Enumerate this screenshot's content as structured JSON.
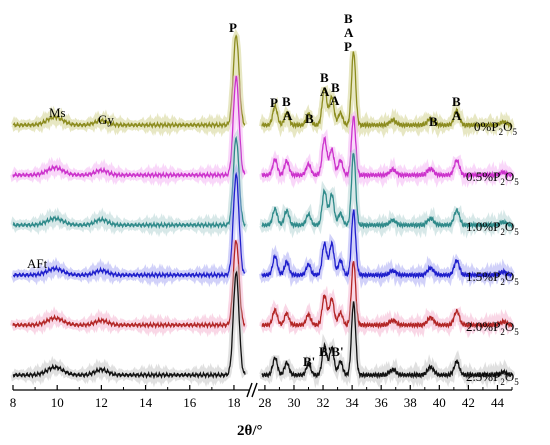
{
  "chart_data": {
    "type": "line",
    "xlabel": "2θ/°",
    "axis_break": {
      "left_end": 18.5,
      "right_start": 27.8
    },
    "x_ticks_left": [
      "8",
      "10",
      "12",
      "14",
      "16",
      "18"
    ],
    "x_ticks_right": [
      "28",
      "30",
      "32",
      "34",
      "36",
      "38",
      "40",
      "42",
      "44"
    ],
    "series": [
      {
        "name": "0%P2O5",
        "label_main": "0%P",
        "label_sub": "2",
        "label_tail": "O",
        "label_sub2": "5",
        "color": "#8c8c1f",
        "highlight": "#c9c97a",
        "base": 0
      },
      {
        "name": "0.5%P2O5",
        "label_main": "0.5%P",
        "label_sub": "2",
        "label_tail": "O",
        "label_sub2": "5",
        "color": "#cc33cc",
        "highlight": "#f2a6f2",
        "base": 1
      },
      {
        "name": "1.0%P2O5",
        "label_main": "1.0%P",
        "label_sub": "2",
        "label_tail": "O",
        "label_sub2": "5",
        "color": "#2f8a8a",
        "highlight": "#a6cccc",
        "base": 2
      },
      {
        "name": "1.5%P2O5",
        "label_main": "1.5%P",
        "label_sub": "2",
        "label_tail": "O",
        "label_sub2": "5",
        "color": "#1f1fcc",
        "highlight": "#9a9af2",
        "base": 3
      },
      {
        "name": "2.0%P2O5",
        "label_main": "2.0%P",
        "label_sub": "2",
        "label_tail": "O",
        "label_sub2": "5",
        "color": "#b32626",
        "highlight": "#f2a6c8",
        "base": 4
      },
      {
        "name": "2.5%P2O5",
        "label_main": "2.5%P",
        "label_sub": "2",
        "label_tail": "O",
        "label_sub2": "5",
        "color": "#111111",
        "highlight": "#bbbbbb",
        "base": 5
      }
    ],
    "peaks": [
      {
        "x": 9.9,
        "h": 0.12,
        "w": 0.5
      },
      {
        "x": 12.0,
        "h": 0.08,
        "w": 0.4
      },
      {
        "x": 18.1,
        "h": 1.55,
        "w": 0.18
      },
      {
        "x": 28.7,
        "h": 0.28,
        "w": 0.22
      },
      {
        "x": 29.5,
        "h": 0.22,
        "w": 0.22
      },
      {
        "x": 31.0,
        "h": 0.2,
        "w": 0.22
      },
      {
        "x": 32.1,
        "h": 0.55,
        "w": 0.22
      },
      {
        "x": 32.6,
        "h": 0.48,
        "w": 0.22
      },
      {
        "x": 33.2,
        "h": 0.22,
        "w": 0.22
      },
      {
        "x": 34.1,
        "h": 1.1,
        "w": 0.2
      },
      {
        "x": 36.8,
        "h": 0.08,
        "w": 0.3
      },
      {
        "x": 39.4,
        "h": 0.12,
        "w": 0.3
      },
      {
        "x": 41.2,
        "h": 0.22,
        "w": 0.25
      },
      {
        "x": 44.4,
        "h": 0.05,
        "w": 0.3
      }
    ],
    "annotations": {
      "top_P": "P",
      "Ms": "Ms",
      "Gy": "Gy",
      "AFt": "AFt",
      "P1": "P",
      "B1": "B",
      "A1": "A",
      "B2": "B",
      "B3": "B",
      "A2": "A",
      "B4": "B",
      "A3": "A",
      "B5": "B",
      "A4": "A",
      "P2": "P",
      "B6": "B",
      "B7": "B",
      "A5": "A",
      "Bp1": "B'",
      "Bp2": "B'B'"
    }
  }
}
